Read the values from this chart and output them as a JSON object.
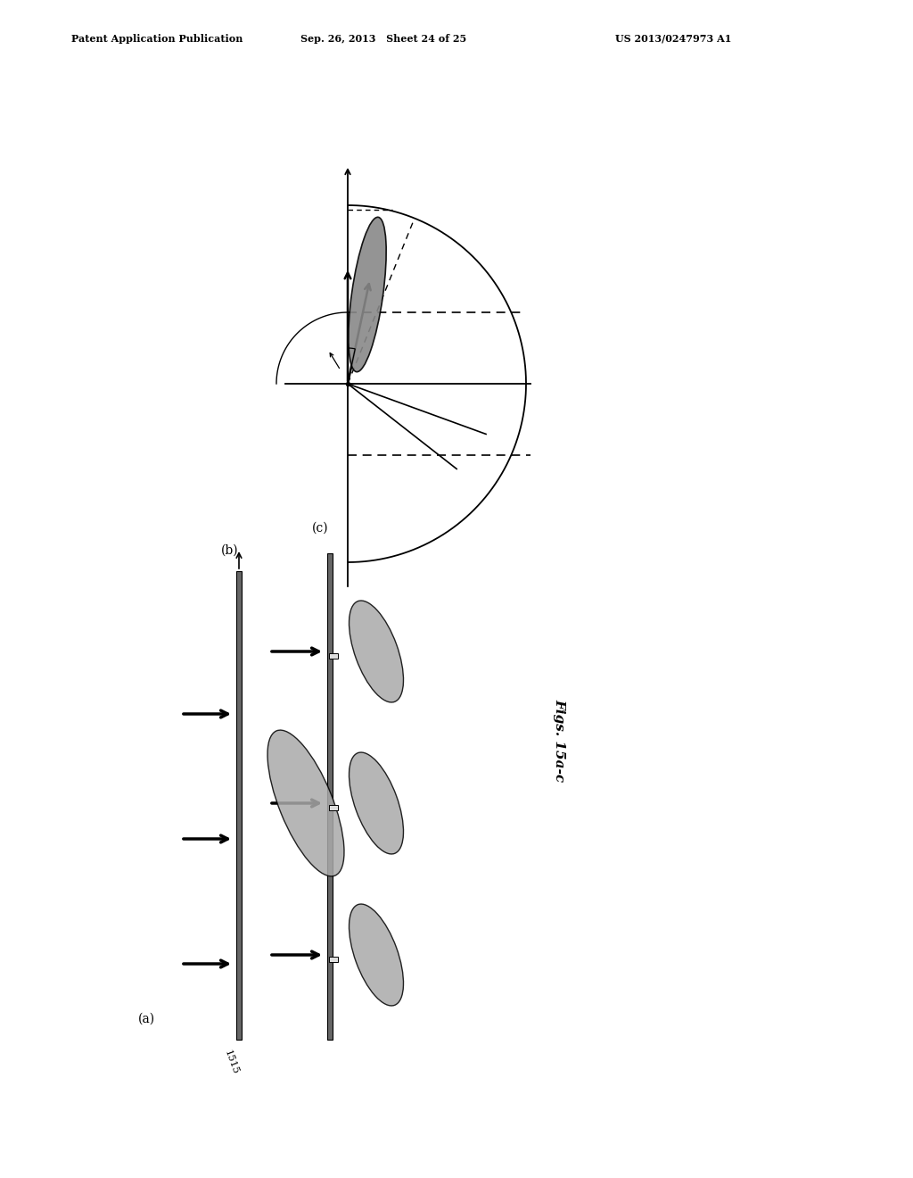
{
  "header_left": "Patent Application Publication",
  "header_mid": "Sep. 26, 2013   Sheet 24 of 25",
  "header_right": "US 2013/0247973 A1",
  "fig_label": "Figs. 15a-c",
  "label_1515": "1515",
  "background": "#ffffff",
  "line_color": "#000000",
  "gray_fill": "#aaaaaa",
  "dark_gray": "#555555"
}
